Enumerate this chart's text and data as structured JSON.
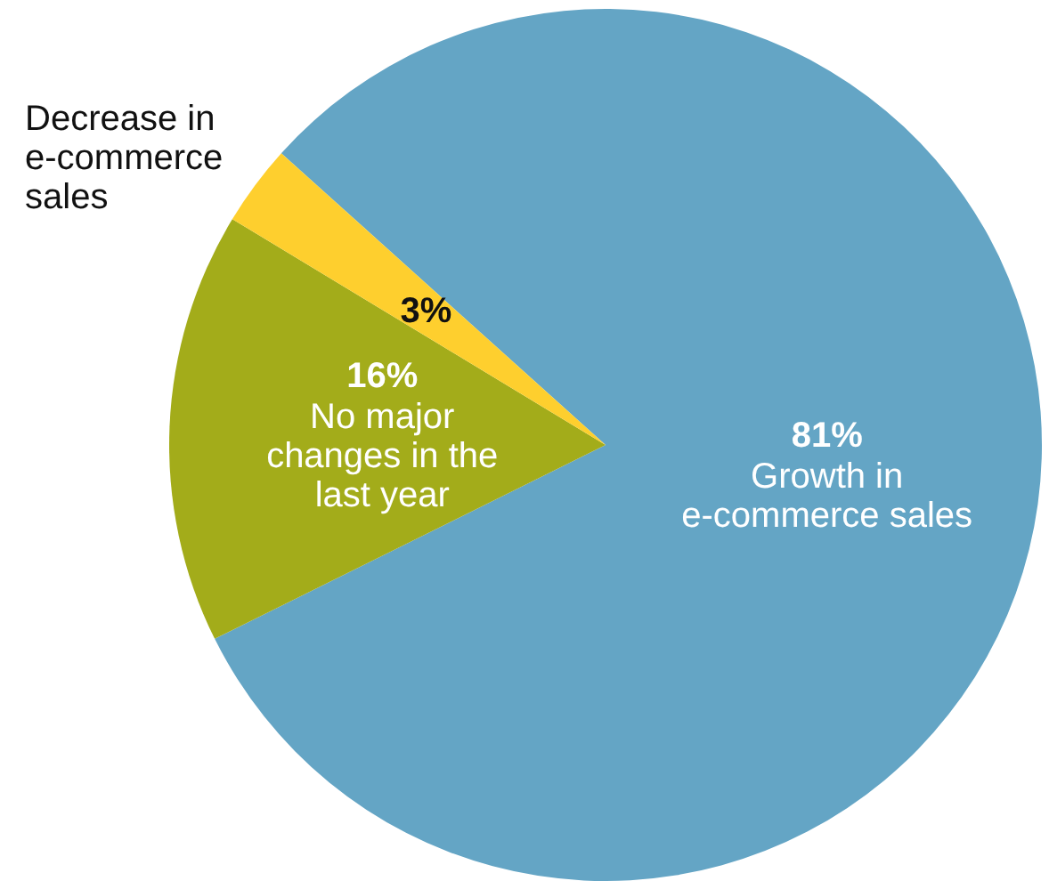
{
  "chart_data": {
    "type": "pie",
    "categories": [
      "Growth in e-commerce sales",
      "No major changes in the last year",
      "Decrease in e-commerce sales"
    ],
    "values": [
      81,
      16,
      3
    ],
    "colors": [
      "#64a5c5",
      "#a3ac1a",
      "#fecf2e"
    ],
    "value_labels": [
      "81%",
      "16%",
      "3%"
    ],
    "legend": false
  }
}
